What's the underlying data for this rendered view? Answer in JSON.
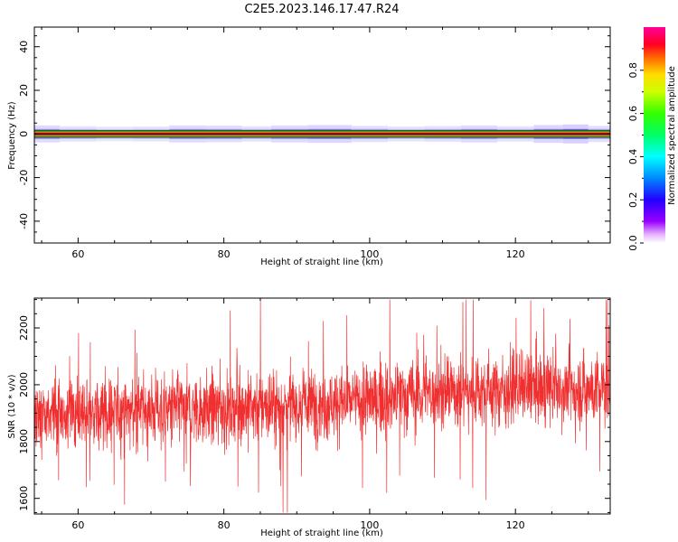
{
  "figure": {
    "title": "C2E5.2023.146.17.47.R24"
  },
  "chart_data": [
    {
      "type": "heatmap",
      "xlabel": "Height of straight line (km)",
      "ylabel": "Frequency (Hz)",
      "xlim": [
        54,
        133
      ],
      "ylim": [
        -50,
        49
      ],
      "x_ticks": [
        60,
        80,
        100,
        120
      ],
      "y_ticks": [
        -40,
        -20,
        0,
        20,
        40
      ],
      "x_tick_labels": [
        "60",
        "80",
        "100",
        "120"
      ],
      "y_tick_labels": [
        "-40",
        "-20",
        "0",
        "20",
        "40"
      ],
      "colormap": "hsv-like (violet-blue-cyan-green-yellow-red-magenta)",
      "colorbar": {
        "label": "Normalized spectral amplitude",
        "range": [
          0,
          1
        ],
        "ticks": [
          0.0,
          0.2,
          0.4,
          0.6,
          0.8
        ],
        "tick_labels": [
          "0.0",
          "0.2",
          "0.4",
          "0.6",
          "0.8"
        ]
      },
      "band": {
        "center_frequency_hz": 0,
        "core_halfwidth_hz": 1,
        "halo_halfwidth_hz": 3,
        "core_amplitude": 1.0,
        "halo_amplitude": 0.05
      },
      "halo_intensity_by_height": [
        {
          "x": 55,
          "amp": 0.1
        },
        {
          "x": 60,
          "amp": 0.06
        },
        {
          "x": 65,
          "amp": 0.04
        },
        {
          "x": 70,
          "amp": 0.05
        },
        {
          "x": 75,
          "amp": 0.1
        },
        {
          "x": 80,
          "amp": 0.09
        },
        {
          "x": 85,
          "amp": 0.06
        },
        {
          "x": 88,
          "amp": 0.1
        },
        {
          "x": 95,
          "amp": 0.12
        },
        {
          "x": 100,
          "amp": 0.08
        },
        {
          "x": 105,
          "amp": 0.05
        },
        {
          "x": 110,
          "amp": 0.07
        },
        {
          "x": 115,
          "amp": 0.1
        },
        {
          "x": 120,
          "amp": 0.06
        },
        {
          "x": 125,
          "amp": 0.12
        },
        {
          "x": 128,
          "amp": 0.15
        },
        {
          "x": 132,
          "amp": 0.08
        }
      ]
    },
    {
      "type": "line",
      "xlabel": "Height of straight line (km)",
      "ylabel": "SNR (10 * v/v)",
      "xlim": [
        54,
        133
      ],
      "ylim": [
        1545,
        2305
      ],
      "x_ticks": [
        60,
        80,
        100,
        120
      ],
      "y_ticks": [
        1600,
        1800,
        2000,
        2200
      ],
      "x_tick_labels": [
        "60",
        "80",
        "100",
        "120"
      ],
      "y_tick_labels": [
        "1600",
        "1800",
        "2000",
        "2200"
      ],
      "series": [
        {
          "color": "#f03030",
          "sample_count": 2400,
          "trend": [
            {
              "x": 54,
              "y": 1885
            },
            {
              "x": 60,
              "y": 1890
            },
            {
              "x": 70,
              "y": 1915
            },
            {
              "x": 80,
              "y": 1915
            },
            {
              "x": 90,
              "y": 1930
            },
            {
              "x": 100,
              "y": 1945
            },
            {
              "x": 110,
              "y": 1975
            },
            {
              "x": 120,
              "y": 1985
            },
            {
              "x": 133,
              "y": 1985
            }
          ],
          "noise_std": 90,
          "y_min_observed": 1550,
          "y_max_observed": 2300
        }
      ]
    }
  ]
}
